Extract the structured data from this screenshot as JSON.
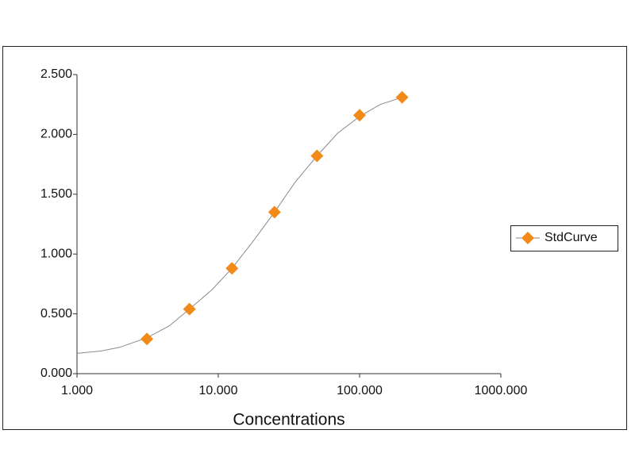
{
  "chart_data": {
    "type": "scatter",
    "x_label": "Concentrations",
    "xscale": "log",
    "xlim": [
      1,
      1000
    ],
    "xticks": [
      {
        "value": 1,
        "label": "1.000"
      },
      {
        "value": 10,
        "label": "10.000"
      },
      {
        "value": 100,
        "label": "100.000"
      },
      {
        "value": 1000,
        "label": "1000.000"
      }
    ],
    "ylim": [
      0,
      2.5
    ],
    "yticks": [
      {
        "value": 0,
        "label": "0.000"
      },
      {
        "value": 0.5,
        "label": "0.500"
      },
      {
        "value": 1,
        "label": "1.000"
      },
      {
        "value": 1.5,
        "label": "1.500"
      },
      {
        "value": 2,
        "label": "2.000"
      },
      {
        "value": 2.5,
        "label": "2.500"
      }
    ],
    "grid": false,
    "legend": "right",
    "series": [
      {
        "name": "StdCurve",
        "color": "#f28a1a",
        "x": [
          3.125,
          6.25,
          12.5,
          25,
          50,
          100,
          200
        ],
        "values": [
          0.29,
          0.54,
          0.88,
          1.35,
          1.82,
          2.16,
          2.31
        ]
      }
    ],
    "trendline": {
      "color": "#8a8a8a",
      "x": [
        1,
        1.5,
        2,
        3.125,
        4.5,
        6.25,
        9,
        12.5,
        18,
        25,
        35,
        50,
        70,
        100,
        140,
        200
      ],
      "values": [
        0.17,
        0.19,
        0.22,
        0.3,
        0.4,
        0.54,
        0.7,
        0.88,
        1.12,
        1.35,
        1.6,
        1.82,
        2.01,
        2.15,
        2.25,
        2.31
      ]
    }
  }
}
